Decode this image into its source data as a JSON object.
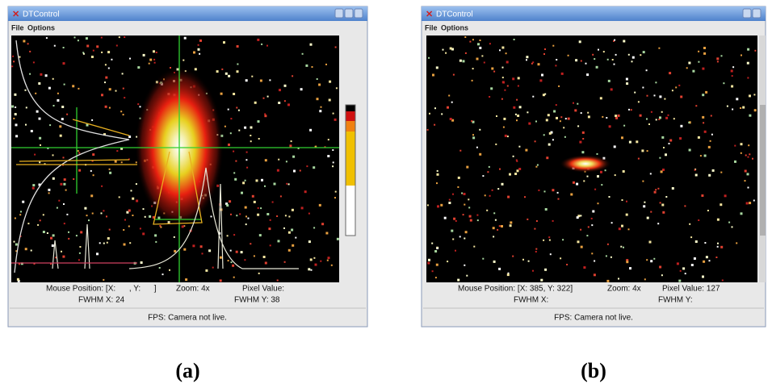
{
  "windows": [
    {
      "title": "DTControl",
      "menu": [
        "File",
        "Options"
      ],
      "status": {
        "mouse_position": "Mouse Position: [X:      , Y:      ]",
        "zoom": "Zoom: 4x",
        "pixel_value": "Pixel Value:",
        "fwhm_x": "FWHM X: 24",
        "fwhm_y": "FWHM Y: 38",
        "fps": "FPS: Camera not live."
      },
      "caption": "(a)"
    },
    {
      "title": "DTControl",
      "menu": [
        "File",
        "Options"
      ],
      "status": {
        "mouse_position": "Mouse Position: [X: 385, Y: 322]",
        "zoom": "Zoom: 4x",
        "pixel_value": "Pixel Value: 127",
        "fwhm_x": "FWHM X:",
        "fwhm_y": "FWHM Y:",
        "fps": "FPS: Camera not live."
      },
      "caption": "(b)"
    }
  ]
}
